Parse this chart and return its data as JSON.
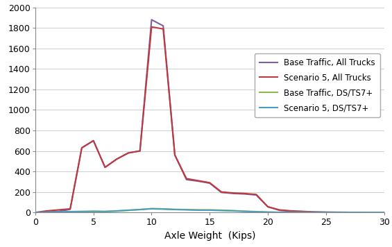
{
  "title": "",
  "xlabel": "Axle Weight  (Kips)",
  "ylabel": "",
  "xlim": [
    0,
    30
  ],
  "ylim": [
    0,
    2000
  ],
  "yticks": [
    0,
    200,
    400,
    600,
    800,
    1000,
    1200,
    1400,
    1600,
    1800,
    2000
  ],
  "xticks": [
    0,
    5,
    10,
    15,
    20,
    25,
    30
  ],
  "series": [
    {
      "label": "Base Traffic, All Trucks",
      "color": "#7B5EA7",
      "linewidth": 1.5,
      "x": [
        0,
        1,
        2,
        3,
        4,
        5,
        6,
        7,
        8,
        9,
        10,
        11,
        12,
        13,
        14,
        15,
        16,
        17,
        18,
        19,
        20,
        21,
        22,
        23,
        24,
        25,
        26,
        27,
        28,
        29,
        30
      ],
      "y": [
        0,
        5,
        10,
        30,
        630,
        700,
        440,
        520,
        580,
        600,
        1880,
        1820,
        560,
        320,
        305,
        285,
        195,
        185,
        180,
        170,
        55,
        20,
        12,
        8,
        4,
        2,
        1,
        1,
        0,
        0,
        0
      ]
    },
    {
      "label": "Scenario 5, All Trucks",
      "color": "#C0393B",
      "linewidth": 1.5,
      "x": [
        0,
        1,
        2,
        3,
        4,
        5,
        6,
        7,
        8,
        9,
        10,
        11,
        12,
        13,
        14,
        15,
        16,
        17,
        18,
        19,
        20,
        21,
        22,
        23,
        24,
        25,
        26,
        27,
        28,
        29,
        30
      ],
      "y": [
        0,
        15,
        25,
        35,
        630,
        700,
        440,
        520,
        580,
        600,
        1810,
        1790,
        560,
        330,
        310,
        290,
        200,
        190,
        185,
        175,
        55,
        25,
        15,
        10,
        5,
        3,
        2,
        1,
        1,
        0,
        0
      ]
    },
    {
      "label": "Base Traffic, DS/TS7+",
      "color": "#8DB84A",
      "linewidth": 1.5,
      "x": [
        0,
        1,
        2,
        3,
        4,
        5,
        6,
        7,
        8,
        9,
        10,
        11,
        12,
        13,
        14,
        15,
        16,
        17,
        18,
        19,
        20,
        21,
        22,
        23,
        24,
        25,
        26,
        27,
        28,
        29,
        30
      ],
      "y": [
        0,
        0,
        0,
        2,
        5,
        8,
        8,
        12,
        20,
        28,
        38,
        35,
        30,
        28,
        25,
        25,
        22,
        18,
        12,
        8,
        3,
        1,
        0,
        0,
        0,
        0,
        0,
        0,
        0,
        0,
        0
      ]
    },
    {
      "label": "Scenario 5, DS/TS7+",
      "color": "#4B9DC0",
      "linewidth": 1.5,
      "x": [
        0,
        1,
        2,
        3,
        4,
        5,
        6,
        7,
        8,
        9,
        10,
        11,
        12,
        13,
        14,
        15,
        16,
        17,
        18,
        19,
        20,
        21,
        22,
        23,
        24,
        25,
        26,
        27,
        28,
        29,
        30
      ],
      "y": [
        0,
        2,
        5,
        8,
        10,
        12,
        10,
        15,
        22,
        28,
        35,
        32,
        28,
        25,
        22,
        22,
        18,
        15,
        10,
        6,
        3,
        1,
        0,
        0,
        0,
        0,
        0,
        0,
        0,
        0,
        0
      ]
    }
  ],
  "legend_loc": "center right",
  "grid_color": "#C8C8C8",
  "bg_color": "#FFFFFF",
  "xlabel_fontsize": 10,
  "tick_fontsize": 9,
  "legend_fontsize": 8.5
}
